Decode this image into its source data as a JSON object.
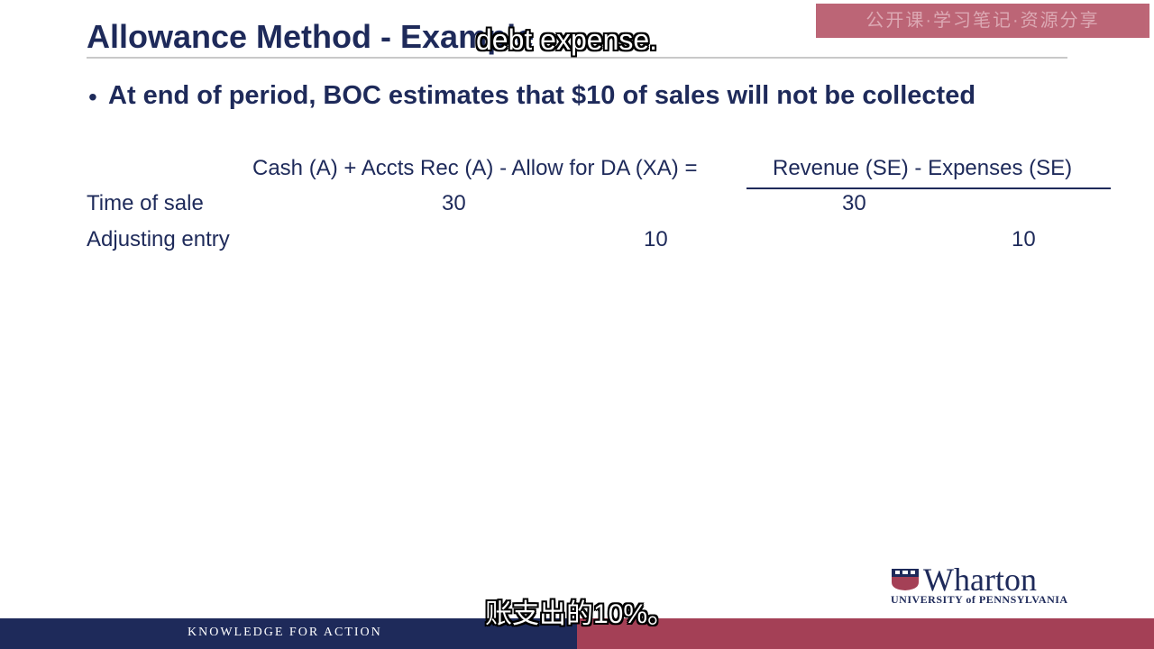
{
  "slide": {
    "title": "Allowance Method - Example",
    "bullet": "At end of period, BOC estimates that $10 of sales will not be collected"
  },
  "table": {
    "header_left": "Cash (A) + Accts Rec (A) - Allow for DA (XA) =",
    "header_right": "Revenue (SE) - Expenses (SE)",
    "rows": [
      {
        "label": "Time of sale",
        "cash": "30",
        "revenue": "30"
      },
      {
        "label": "Adjusting entry",
        "allowance": "10",
        "expenses": "10"
      }
    ]
  },
  "logo": {
    "name": "Wharton",
    "university": "UNIVERSITY of PENNSYLVANIA"
  },
  "footer": {
    "tagline": "KNOWLEDGE FOR ACTION"
  },
  "subtitles": {
    "top": "debt expense.",
    "bottom": "账支出的10%。"
  },
  "watermark": {
    "text": "公开课·学习笔记·资源分享"
  },
  "colors": {
    "navy": "#1e2a5a",
    "crimson": "#a44056",
    "watermark_bg": "#b14b5f"
  }
}
